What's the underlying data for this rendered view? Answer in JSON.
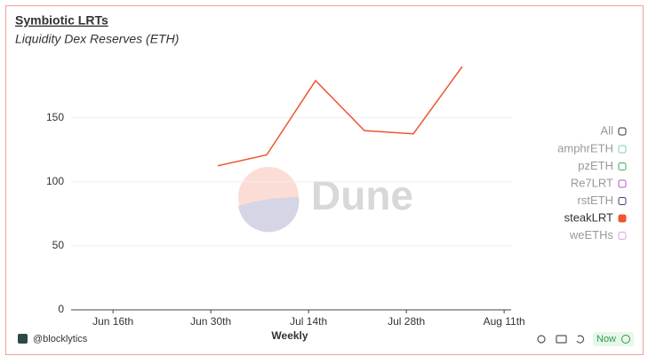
{
  "chart_data": {
    "type": "line",
    "title": "Symbiotic LRTs",
    "subtitle": "Liquidity Dex Reserves (ETH)",
    "x_label": "Weekly",
    "author": "@blocklytics",
    "watermark": "Dune",
    "status": "Now",
    "legend_all": "All",
    "x": [
      "Jul 1",
      "Jul 8",
      "Jul 15",
      "Jul 22",
      "Jul 29",
      "Aug 5"
    ],
    "xlim": [
      "Jun 10",
      "Aug 12"
    ],
    "xticks": [
      {
        "value": "Jun 16",
        "label": "Jun 16th"
      },
      {
        "value": "Jun 30",
        "label": "Jun 30th"
      },
      {
        "value": "Jul 14",
        "label": "Jul 14th"
      },
      {
        "value": "Jul 28",
        "label": "Jul 28th"
      },
      {
        "value": "Aug 11",
        "label": "Aug 11th"
      }
    ],
    "ylim": [
      0,
      190
    ],
    "yticks": [
      0,
      50,
      100,
      150
    ],
    "grid": true,
    "series": [
      {
        "name": "amphrETH",
        "color": "#7cc8c4",
        "values": [
          null,
          null,
          null,
          null,
          null,
          null
        ]
      },
      {
        "name": "pzETH",
        "color": "#3fae5a",
        "values": [
          null,
          null,
          null,
          null,
          null,
          null
        ]
      },
      {
        "name": "Re7LRT",
        "color": "#b258c0",
        "values": [
          null,
          null,
          null,
          null,
          null,
          null
        ]
      },
      {
        "name": "rstETH",
        "color": "#3b3b78",
        "values": [
          null,
          null,
          null,
          null,
          null,
          null
        ]
      },
      {
        "name": "steakLRT",
        "color": "#f0542e",
        "values": [
          112.5,
          121,
          179,
          140,
          137.5,
          190
        ]
      },
      {
        "name": "weETHs",
        "color": "#d9a3dc",
        "values": [
          null,
          null,
          null,
          null,
          null,
          null
        ]
      }
    ]
  }
}
